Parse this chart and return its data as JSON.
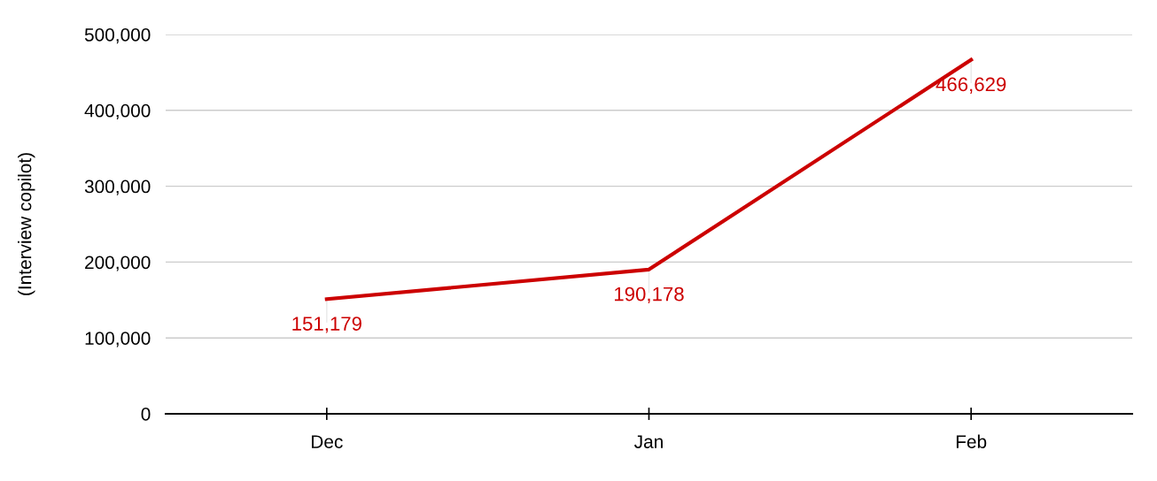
{
  "chart_data": {
    "type": "line",
    "ylabel": "(Interview copilot)",
    "categories": [
      "Dec",
      "Jan",
      "Feb"
    ],
    "series": [
      {
        "color": "#cc0000",
        "values": [
          151179,
          190178,
          466629
        ],
        "value_labels": [
          "151,179",
          "190,178",
          "466,629"
        ]
      }
    ],
    "ylim": [
      0,
      500000
    ],
    "yticks": [
      {
        "value": 0,
        "label": "0"
      },
      {
        "value": 100000,
        "label": "100,000"
      },
      {
        "value": 200000,
        "label": "200,000"
      },
      {
        "value": 300000,
        "label": "300,000"
      },
      {
        "value": 400000,
        "label": "400,000"
      },
      {
        "value": 500000,
        "label": "500,000"
      }
    ],
    "grid": "y",
    "legend": false,
    "marker": "none",
    "line_style": "solid"
  }
}
